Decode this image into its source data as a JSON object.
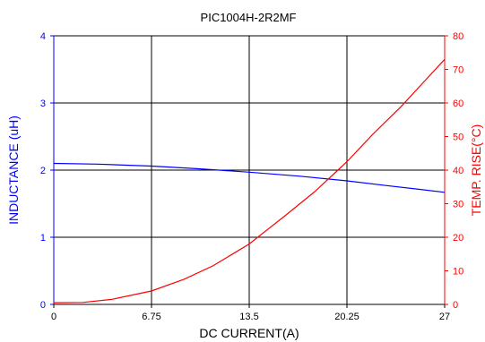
{
  "chart_data": {
    "type": "line",
    "title": "PIC1004H-2R2MF",
    "xlabel": "DC CURRENT(A)",
    "x_ticks": [
      "0",
      "6.75",
      "13.5",
      "20.25",
      "27"
    ],
    "xlim": [
      0,
      27
    ],
    "grid": true,
    "y_left": {
      "label": "INDUCTANCE (uH)",
      "ylim": [
        0,
        4
      ],
      "ticks": [
        "0",
        "1",
        "2",
        "3",
        "4"
      ],
      "color": "#0000ff"
    },
    "y_right": {
      "label": "TEMP. RISE(°C)",
      "ylim": [
        0,
        80
      ],
      "ticks": [
        "0",
        "10",
        "20",
        "30",
        "40",
        "50",
        "60",
        "70",
        "80"
      ],
      "color": "#ff0000"
    },
    "series": [
      {
        "axis": "left",
        "color": "#0000ff",
        "x": [
          0,
          3,
          6.75,
          10,
          13.5,
          17,
          20.25,
          23,
          25,
          27
        ],
        "y": [
          2.1,
          2.09,
          2.06,
          2.02,
          1.97,
          1.91,
          1.84,
          1.77,
          1.72,
          1.67
        ]
      },
      {
        "axis": "right",
        "color": "#ff0000",
        "x": [
          0,
          2,
          4,
          6.75,
          9,
          11,
          13.5,
          16,
          18,
          20.25,
          22,
          24,
          25.5,
          27
        ],
        "y": [
          0.5,
          0.6,
          1.5,
          4,
          7.5,
          11.5,
          18,
          26.5,
          33.5,
          42.5,
          50.5,
          59,
          66,
          73
        ]
      }
    ]
  }
}
